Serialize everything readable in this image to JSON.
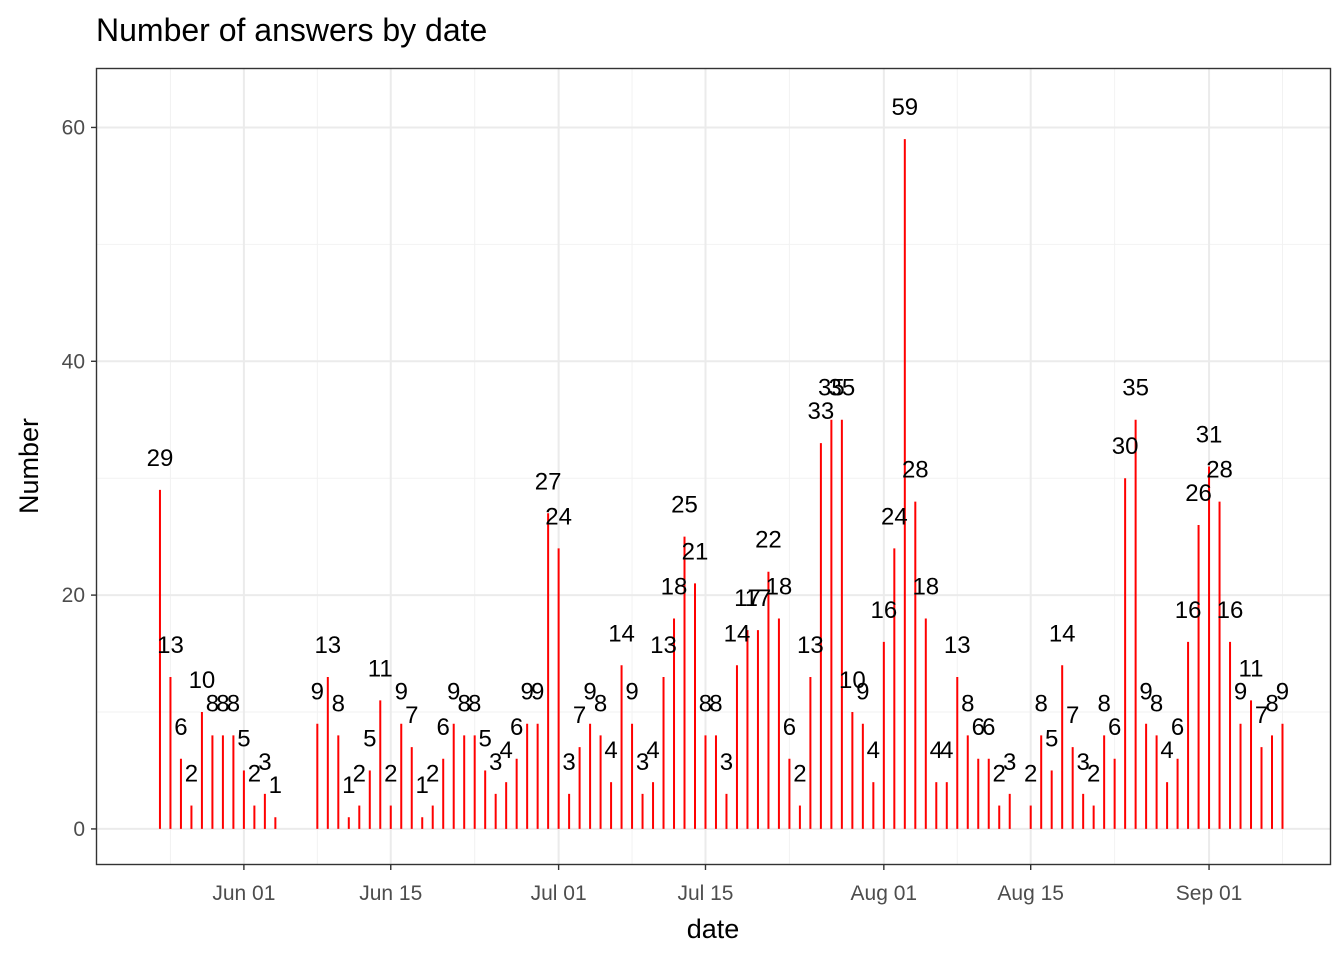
{
  "chart_data": {
    "type": "bar",
    "title": "Number of answers by date",
    "xlabel": "date",
    "ylabel": "Number",
    "ylim": [
      -3,
      65
    ],
    "xlim": [
      "2020-05-20",
      "2020-09-07"
    ],
    "y_ticks": [
      0,
      20,
      40,
      60
    ],
    "x_ticks": [
      {
        "date": "2020-06-01",
        "label": "Jun 01"
      },
      {
        "date": "2020-06-15",
        "label": "Jun 15"
      },
      {
        "date": "2020-07-01",
        "label": "Jul 01"
      },
      {
        "date": "2020-07-15",
        "label": "Jul 15"
      },
      {
        "date": "2020-08-01",
        "label": "Aug 01"
      },
      {
        "date": "2020-08-15",
        "label": "Aug 15"
      },
      {
        "date": "2020-09-01",
        "label": "Sep 01"
      }
    ],
    "grid": true,
    "bar_color": "#ff0000",
    "data_labels": true,
    "points": [
      {
        "date": "2020-05-24",
        "value": 29
      },
      {
        "date": "2020-05-25",
        "value": 13
      },
      {
        "date": "2020-05-26",
        "value": 6
      },
      {
        "date": "2020-05-27",
        "value": 2
      },
      {
        "date": "2020-05-28",
        "value": 10
      },
      {
        "date": "2020-05-29",
        "value": 8
      },
      {
        "date": "2020-05-30",
        "value": 8
      },
      {
        "date": "2020-05-31",
        "value": 8
      },
      {
        "date": "2020-06-01",
        "value": 5
      },
      {
        "date": "2020-06-02",
        "value": 2
      },
      {
        "date": "2020-06-03",
        "value": 3
      },
      {
        "date": "2020-06-04",
        "value": 1
      },
      {
        "date": "2020-06-08",
        "value": 9
      },
      {
        "date": "2020-06-09",
        "value": 13
      },
      {
        "date": "2020-06-10",
        "value": 8
      },
      {
        "date": "2020-06-11",
        "value": 1
      },
      {
        "date": "2020-06-12",
        "value": 2
      },
      {
        "date": "2020-06-13",
        "value": 5
      },
      {
        "date": "2020-06-14",
        "value": 11
      },
      {
        "date": "2020-06-15",
        "value": 2
      },
      {
        "date": "2020-06-16",
        "value": 9
      },
      {
        "date": "2020-06-17",
        "value": 7
      },
      {
        "date": "2020-06-18",
        "value": 1
      },
      {
        "date": "2020-06-19",
        "value": 2
      },
      {
        "date": "2020-06-20",
        "value": 6
      },
      {
        "date": "2020-06-21",
        "value": 9
      },
      {
        "date": "2020-06-22",
        "value": 8
      },
      {
        "date": "2020-06-23",
        "value": 8
      },
      {
        "date": "2020-06-24",
        "value": 5
      },
      {
        "date": "2020-06-25",
        "value": 3
      },
      {
        "date": "2020-06-26",
        "value": 4
      },
      {
        "date": "2020-06-27",
        "value": 6
      },
      {
        "date": "2020-06-28",
        "value": 9
      },
      {
        "date": "2020-06-29",
        "value": 9
      },
      {
        "date": "2020-06-30",
        "value": 27
      },
      {
        "date": "2020-07-01",
        "value": 24
      },
      {
        "date": "2020-07-02",
        "value": 3
      },
      {
        "date": "2020-07-03",
        "value": 7
      },
      {
        "date": "2020-07-04",
        "value": 9
      },
      {
        "date": "2020-07-05",
        "value": 8
      },
      {
        "date": "2020-07-06",
        "value": 4
      },
      {
        "date": "2020-07-07",
        "value": 14
      },
      {
        "date": "2020-07-08",
        "value": 9
      },
      {
        "date": "2020-07-09",
        "value": 3
      },
      {
        "date": "2020-07-10",
        "value": 4
      },
      {
        "date": "2020-07-11",
        "value": 13
      },
      {
        "date": "2020-07-12",
        "value": 18
      },
      {
        "date": "2020-07-13",
        "value": 25
      },
      {
        "date": "2020-07-14",
        "value": 21
      },
      {
        "date": "2020-07-15",
        "value": 8
      },
      {
        "date": "2020-07-16",
        "value": 8
      },
      {
        "date": "2020-07-17",
        "value": 3
      },
      {
        "date": "2020-07-18",
        "value": 14
      },
      {
        "date": "2020-07-19",
        "value": 17
      },
      {
        "date": "2020-07-20",
        "value": 17
      },
      {
        "date": "2020-07-21",
        "value": 22
      },
      {
        "date": "2020-07-22",
        "value": 18
      },
      {
        "date": "2020-07-23",
        "value": 6
      },
      {
        "date": "2020-07-24",
        "value": 2
      },
      {
        "date": "2020-07-25",
        "value": 13
      },
      {
        "date": "2020-07-26",
        "value": 33
      },
      {
        "date": "2020-07-27",
        "value": 35
      },
      {
        "date": "2020-07-28",
        "value": 35
      },
      {
        "date": "2020-07-29",
        "value": 10
      },
      {
        "date": "2020-07-30",
        "value": 9
      },
      {
        "date": "2020-07-31",
        "value": 4
      },
      {
        "date": "2020-08-01",
        "value": 16
      },
      {
        "date": "2020-08-02",
        "value": 24
      },
      {
        "date": "2020-08-03",
        "value": 59
      },
      {
        "date": "2020-08-04",
        "value": 28
      },
      {
        "date": "2020-08-05",
        "value": 18
      },
      {
        "date": "2020-08-06",
        "value": 4
      },
      {
        "date": "2020-08-07",
        "value": 4
      },
      {
        "date": "2020-08-08",
        "value": 13
      },
      {
        "date": "2020-08-09",
        "value": 8
      },
      {
        "date": "2020-08-10",
        "value": 6
      },
      {
        "date": "2020-08-11",
        "value": 6
      },
      {
        "date": "2020-08-12",
        "value": 2
      },
      {
        "date": "2020-08-13",
        "value": 3
      },
      {
        "date": "2020-08-15",
        "value": 2
      },
      {
        "date": "2020-08-16",
        "value": 8
      },
      {
        "date": "2020-08-17",
        "value": 5
      },
      {
        "date": "2020-08-18",
        "value": 14
      },
      {
        "date": "2020-08-19",
        "value": 7
      },
      {
        "date": "2020-08-20",
        "value": 3
      },
      {
        "date": "2020-08-21",
        "value": 2
      },
      {
        "date": "2020-08-22",
        "value": 8
      },
      {
        "date": "2020-08-23",
        "value": 6
      },
      {
        "date": "2020-08-24",
        "value": 30
      },
      {
        "date": "2020-08-25",
        "value": 35
      },
      {
        "date": "2020-08-26",
        "value": 9
      },
      {
        "date": "2020-08-27",
        "value": 8
      },
      {
        "date": "2020-08-28",
        "value": 4
      },
      {
        "date": "2020-08-29",
        "value": 6
      },
      {
        "date": "2020-08-30",
        "value": 16
      },
      {
        "date": "2020-08-31",
        "value": 26
      },
      {
        "date": "2020-09-01",
        "value": 31
      },
      {
        "date": "2020-09-02",
        "value": 28
      },
      {
        "date": "2020-09-03",
        "value": 16
      },
      {
        "date": "2020-09-04",
        "value": 9
      },
      {
        "date": "2020-09-05",
        "value": 11
      },
      {
        "date": "2020-09-06",
        "value": 7
      },
      {
        "date": "2020-09-07",
        "value": 8
      },
      {
        "date": "2020-09-08",
        "value": 9
      }
    ]
  }
}
